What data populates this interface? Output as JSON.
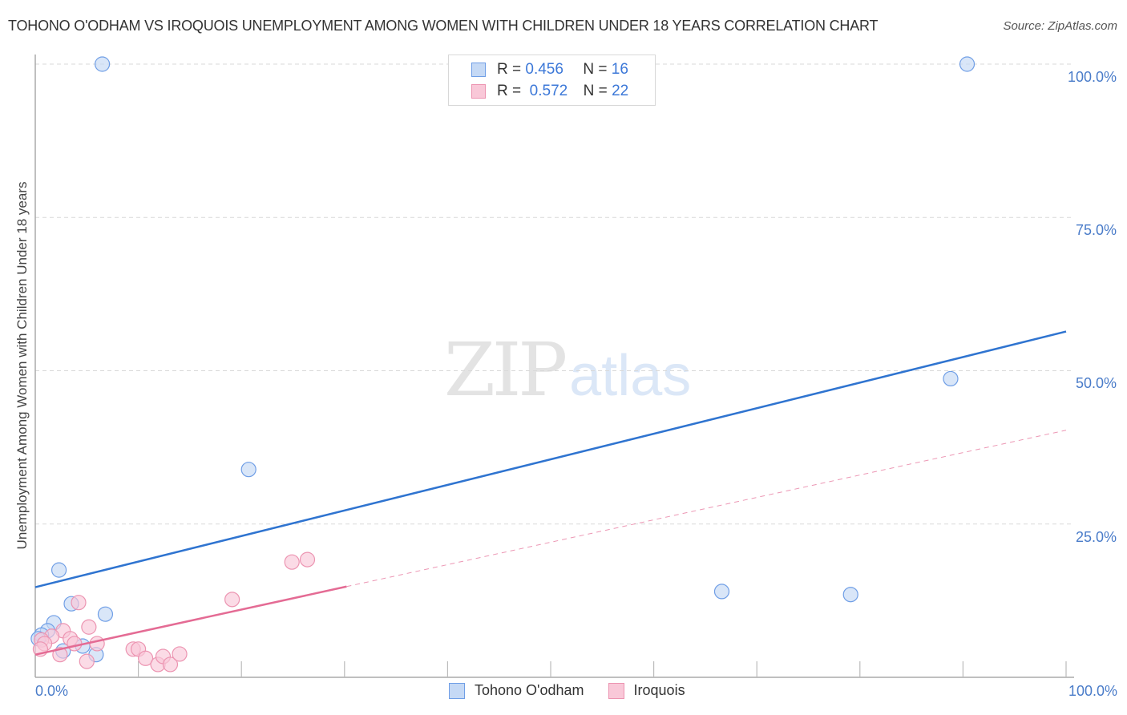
{
  "header": {
    "title": "TOHONO O'ODHAM VS IROQUOIS UNEMPLOYMENT AMONG WOMEN WITH CHILDREN UNDER 18 YEARS CORRELATION CHART",
    "source": "Source: ZipAtlas.com"
  },
  "axes": {
    "ylabel": "Unemployment Among Women with Children Under 18 years",
    "yticks": [
      "100.0%",
      "75.0%",
      "50.0%",
      "25.0%"
    ],
    "xticks": [
      "0.0%",
      "100.0%"
    ]
  },
  "legend": {
    "rows": [
      {
        "r_label": "R =",
        "r_value": "0.456",
        "n_label": "N =",
        "n_value": "16"
      },
      {
        "r_label": "R =",
        "r_value": "0.572",
        "n_label": "N =",
        "n_value": "22"
      }
    ],
    "bottom": [
      "Tohono O'odham",
      "Iroquois"
    ]
  },
  "watermark": {
    "zip": "ZIP",
    "atlas": "atlas"
  },
  "colors": {
    "blue_fill": "#c5d9f5",
    "blue_stroke": "#6f9ee6",
    "blue_line": "#2f74d0",
    "pink_fill": "#f9c8d8",
    "pink_stroke": "#ec94b1",
    "pink_line": "#e46b94",
    "tick_text": "#4a7cc9",
    "grid": "#d9d9d9"
  },
  "chart_data": {
    "type": "scatter",
    "title": "TOHONO O'ODHAM VS IROQUOIS UNEMPLOYMENT AMONG WOMEN WITH CHILDREN UNDER 18 YEARS CORRELATION CHART",
    "xlabel": "",
    "ylabel": "Unemployment Among Women with Children Under 18 years",
    "xlim": [
      0,
      100
    ],
    "ylim": [
      0,
      100
    ],
    "grid": true,
    "legend_position": "top-center",
    "series": [
      {
        "name": "Tohono O'odham",
        "R": 0.456,
        "N": 16,
        "points": [
          [
            6.5,
            100
          ],
          [
            90.4,
            100
          ],
          [
            88.8,
            48.7
          ],
          [
            20.7,
            33.9
          ],
          [
            2.3,
            17.5
          ],
          [
            66.6,
            14.0
          ],
          [
            79.1,
            13.5
          ],
          [
            3.5,
            12.0
          ],
          [
            6.8,
            10.3
          ],
          [
            1.8,
            8.9
          ],
          [
            1.2,
            7.6
          ],
          [
            0.6,
            6.9
          ],
          [
            0.3,
            6.3
          ],
          [
            2.7,
            4.3
          ],
          [
            4.6,
            5.1
          ],
          [
            5.9,
            3.7
          ]
        ],
        "trendline": {
          "x": [
            0,
            100
          ],
          "y": [
            14.7,
            56.4
          ],
          "style": "solid"
        }
      },
      {
        "name": "Iroquois",
        "R": 0.572,
        "N": 22,
        "points": [
          [
            4.2,
            12.2
          ],
          [
            5.2,
            8.2
          ],
          [
            2.7,
            7.6
          ],
          [
            1.6,
            6.7
          ],
          [
            0.6,
            6.1
          ],
          [
            0.9,
            5.5
          ],
          [
            3.4,
            6.3
          ],
          [
            3.8,
            5.5
          ],
          [
            6.0,
            5.5
          ],
          [
            2.4,
            3.7
          ],
          [
            5.0,
            2.6
          ],
          [
            19.1,
            12.7
          ],
          [
            24.9,
            18.8
          ],
          [
            26.4,
            19.2
          ],
          [
            9.5,
            4.6
          ],
          [
            10.0,
            4.6
          ],
          [
            10.7,
            3.1
          ],
          [
            11.9,
            2.1
          ],
          [
            12.4,
            3.4
          ],
          [
            13.1,
            2.1
          ],
          [
            14.0,
            3.8
          ],
          [
            0.5,
            4.6
          ]
        ],
        "trendline": {
          "x": [
            0,
            30.2,
            100
          ],
          "y": [
            3.7,
            14.8,
            40.3
          ],
          "style": "solid to 30%, dashed beyond"
        }
      }
    ]
  }
}
